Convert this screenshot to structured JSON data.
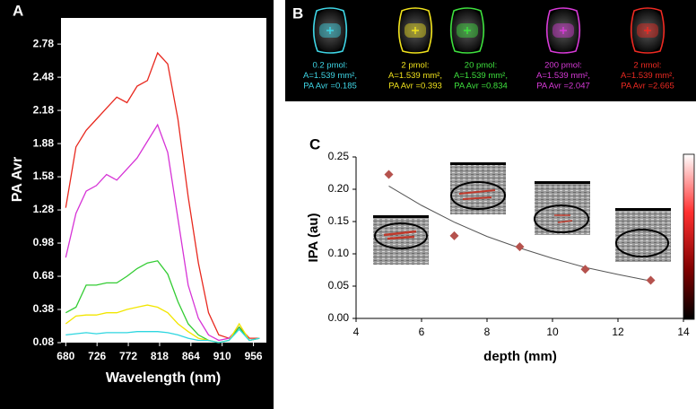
{
  "chart_data": [
    {
      "type": "line",
      "panel_label": "A",
      "x_label": "Wavelength (nm)",
      "y_label": "PA  Avr",
      "x": [
        680,
        695,
        710,
        725,
        740,
        755,
        770,
        785,
        800,
        815,
        830,
        845,
        860,
        875,
        890,
        905,
        920,
        935,
        950,
        965
      ],
      "series": [
        {
          "color": "#e8281e",
          "values": [
            1.3,
            1.85,
            2.0,
            2.1,
            2.2,
            2.3,
            2.25,
            2.4,
            2.45,
            2.7,
            2.6,
            2.1,
            1.4,
            0.8,
            0.35,
            0.15,
            0.12,
            0.22,
            0.12,
            0.12
          ]
        },
        {
          "color": "#d633d6",
          "values": [
            0.85,
            1.25,
            1.45,
            1.5,
            1.6,
            1.55,
            1.65,
            1.75,
            1.9,
            2.05,
            1.8,
            1.2,
            0.6,
            0.3,
            0.15,
            0.1,
            0.12,
            0.22,
            0.1,
            0.12
          ]
        },
        {
          "color": "#33cc33",
          "values": [
            0.35,
            0.4,
            0.6,
            0.6,
            0.62,
            0.62,
            0.68,
            0.75,
            0.8,
            0.82,
            0.7,
            0.45,
            0.25,
            0.15,
            0.1,
            0.08,
            0.1,
            0.22,
            0.1,
            0.12
          ]
        },
        {
          "color": "#f2e600",
          "values": [
            0.25,
            0.32,
            0.33,
            0.33,
            0.35,
            0.35,
            0.38,
            0.4,
            0.42,
            0.4,
            0.35,
            0.25,
            0.18,
            0.12,
            0.1,
            0.08,
            0.1,
            0.25,
            0.1,
            0.12
          ]
        },
        {
          "color": "#2ed6e0",
          "values": [
            0.15,
            0.16,
            0.17,
            0.16,
            0.17,
            0.17,
            0.17,
            0.18,
            0.18,
            0.18,
            0.17,
            0.15,
            0.12,
            0.1,
            0.1,
            0.08,
            0.1,
            0.2,
            0.1,
            0.12
          ]
        }
      ],
      "xlim": [
        673,
        975
      ],
      "ylim": [
        0.08,
        3.0
      ],
      "xticks": [
        680,
        726,
        772,
        818,
        864,
        910,
        956
      ],
      "yticks": [
        0.08,
        0.38,
        0.68,
        0.98,
        1.28,
        1.58,
        1.88,
        2.18,
        2.48,
        2.78
      ]
    },
    {
      "type": "scatter",
      "panel_label": "C",
      "x_label": "depth (mm)",
      "y_label": "IPA (au)",
      "x": [
        5,
        7,
        9,
        11,
        13
      ],
      "series": [
        {
          "color": "#b5524d",
          "values": [
            0.223,
            0.128,
            0.111,
            0.076,
            0.059
          ]
        }
      ],
      "trendline": {
        "color": "#555555",
        "x": [
          5,
          6,
          7,
          8,
          9,
          10,
          11,
          12,
          13
        ],
        "values": [
          0.205,
          0.175,
          0.149,
          0.127,
          0.109,
          0.093,
          0.079,
          0.068,
          0.058
        ]
      },
      "xlim": [
        4,
        14
      ],
      "ylim": [
        0,
        0.25
      ],
      "xticks": [
        4,
        6,
        8,
        10,
        12,
        14
      ],
      "yticks": [
        {
          "value": 0,
          "label": "0.00"
        },
        0.05,
        {
          "value": 0.1,
          "label": "0.10"
        },
        0.15,
        {
          "value": 0.2,
          "label": "0.20"
        },
        0.25
      ]
    }
  ],
  "ultrasound_panel": {
    "panel_label": "B",
    "items": [
      {
        "color": "#3fd6e6",
        "amount": "0.2 pmol:",
        "area": "A=1.539 mm²,",
        "pa": "PA Avr =0.185"
      },
      {
        "color": "#f0e21c",
        "amount": "2 pmol:",
        "area": "A=1.539 mm²,",
        "pa": "PA Avr =0.393"
      },
      {
        "color": "#3ee03e",
        "amount": "20 pmol:",
        "area": "A=1.539 mm²,",
        "pa": "PA Avr =0.834"
      },
      {
        "color": "#d83ad8",
        "amount": "200 pmol:",
        "area": "A=1.539 mm²,",
        "pa": "PA Avr =2.047"
      },
      {
        "color": "#ee2a22",
        "amount": "2 nmol:",
        "area": "A=1.539 mm²,",
        "pa": "PA Avr =2.665"
      }
    ]
  }
}
